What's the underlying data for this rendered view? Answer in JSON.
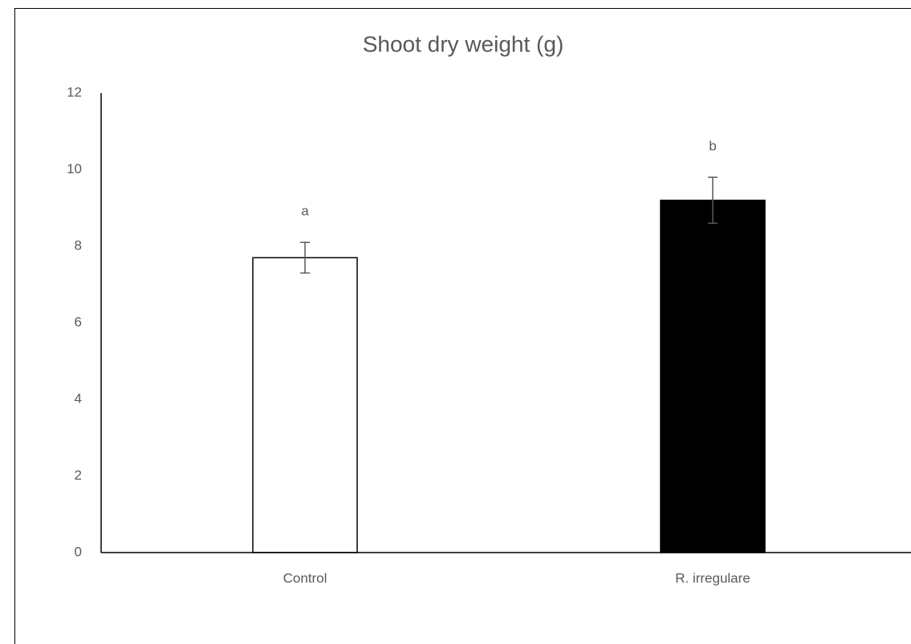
{
  "chart_data": {
    "type": "bar",
    "title": "Shoot dry weight (g)",
    "categories": [
      "Control",
      "R. irregulare"
    ],
    "values": [
      7.7,
      9.2
    ],
    "errors": [
      0.4,
      0.6
    ],
    "colors": [
      "#ffffff",
      "#000000"
    ],
    "annotations": [
      "a",
      "b"
    ],
    "ylim": [
      0,
      12
    ],
    "yticks": [
      0,
      2,
      4,
      6,
      8,
      10,
      12
    ],
    "grid": false
  }
}
